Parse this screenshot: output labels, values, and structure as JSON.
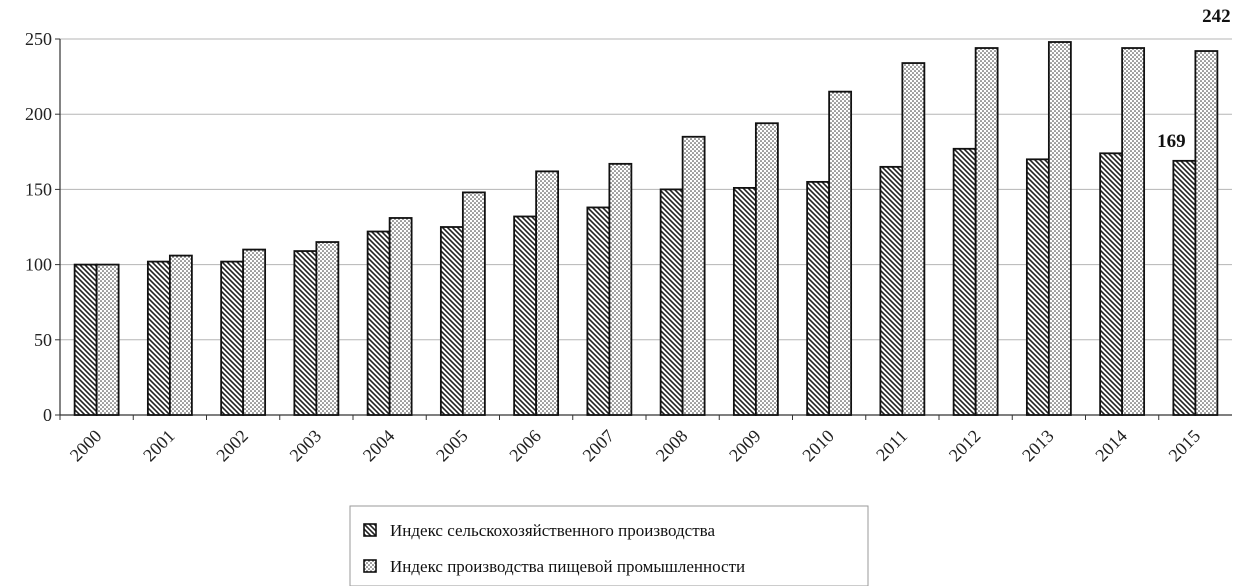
{
  "chart_data": {
    "type": "bar",
    "title": "",
    "xlabel": "",
    "ylabel": "",
    "categories": [
      "2000",
      "2001",
      "2002",
      "2003",
      "2004",
      "2005",
      "2006",
      "2007",
      "2008",
      "2009",
      "2010",
      "2011",
      "2012",
      "2013",
      "2014",
      "2015"
    ],
    "series": [
      {
        "name": "Индекс сельскохозяйственного производства",
        "pattern": "diagonal-hatch",
        "values": [
          100,
          102,
          102,
          109,
          122,
          125,
          132,
          138,
          150,
          151,
          155,
          165,
          177,
          170,
          174,
          169
        ]
      },
      {
        "name": "Индекс производства пищевой промышленности",
        "pattern": "dots",
        "values": [
          100,
          106,
          110,
          115,
          131,
          148,
          162,
          167,
          185,
          194,
          215,
          234,
          244,
          248,
          244,
          242
        ]
      }
    ],
    "ylim": [
      0,
      250
    ],
    "yticks": [
      0,
      50,
      100,
      150,
      200,
      250
    ],
    "grid": true,
    "legend_position": "bottom",
    "annotations": [
      {
        "category": "2015",
        "series": 0,
        "text": "169"
      },
      {
        "category": "2015",
        "series": 1,
        "text": "242"
      }
    ],
    "colors": {
      "bar_stroke": "#111111",
      "grid": "#b5b5b5",
      "axis": "#333333"
    }
  }
}
